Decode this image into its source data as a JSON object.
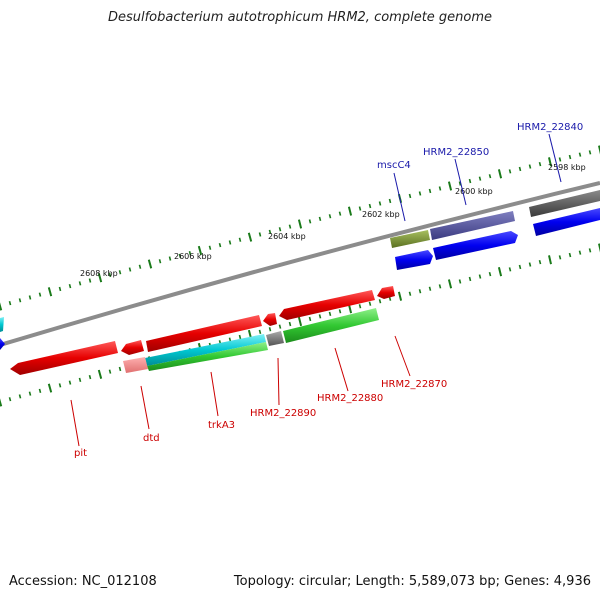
{
  "title": "Desulfobacterium autotrophicum HRM2, complete genome",
  "footer": {
    "accession": "Accession: NC_012108",
    "summary": "Topology: circular; Length: 5,589,073 bp; Genes: 4,936"
  },
  "colors": {
    "backbone": "#8c8c8c",
    "tick": "#1a7a1a",
    "label_red": "#cc0000",
    "label_blue": "#1a1aaa"
  },
  "scale_labels": [
    "2608 kbp",
    "2606 kbp",
    "2604 kbp",
    "2602 kbp",
    "2600 kbp",
    "2598 kbp"
  ],
  "gene_labels": [
    {
      "text": "pit",
      "color": "red"
    },
    {
      "text": "dtd",
      "color": "red"
    },
    {
      "text": "trkA3",
      "color": "red"
    },
    {
      "text": "HRM2_22890",
      "color": "red"
    },
    {
      "text": "HRM2_22880",
      "color": "red"
    },
    {
      "text": "HRM2_22870",
      "color": "red"
    },
    {
      "text": "mscC4",
      "color": "blue"
    },
    {
      "text": "HRM2_22850",
      "color": "blue"
    },
    {
      "text": "HRM2_22840",
      "color": "blue"
    }
  ]
}
